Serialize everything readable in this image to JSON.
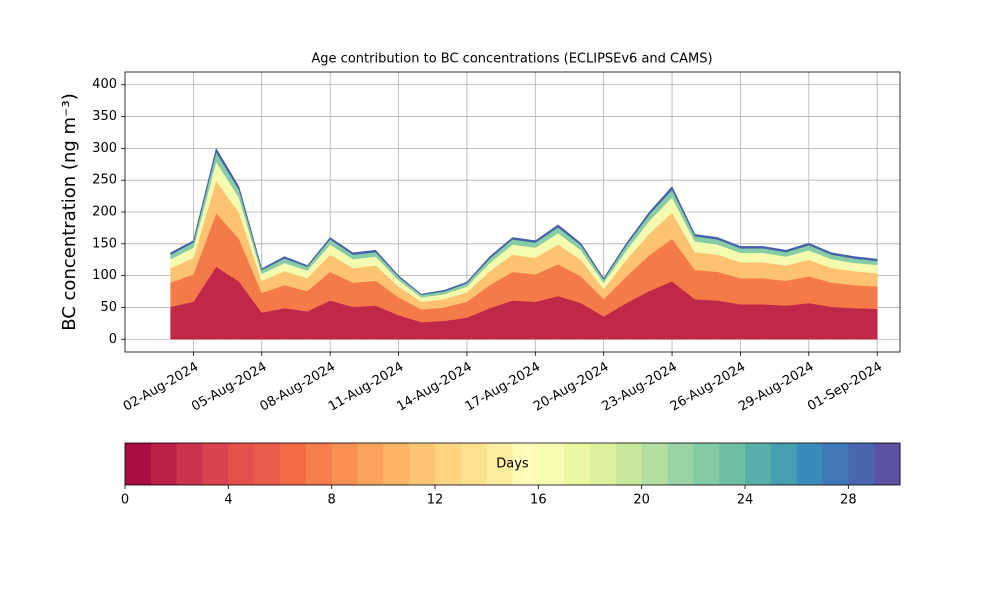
{
  "chart_data": {
    "type": "stacked_area",
    "title": "Age contribution to BC concentrations (ECLIPSEv6 and CAMS)",
    "y_label": "BC concentration (ng m⁻³)",
    "x": [
      "2024-08-01",
      "2024-08-02",
      "2024-08-03",
      "2024-08-04",
      "2024-08-05",
      "2024-08-06",
      "2024-08-07",
      "2024-08-08",
      "2024-08-09",
      "2024-08-10",
      "2024-08-11",
      "2024-08-12",
      "2024-08-13",
      "2024-08-14",
      "2024-08-15",
      "2024-08-16",
      "2024-08-17",
      "2024-08-18",
      "2024-08-19",
      "2024-08-20",
      "2024-08-21",
      "2024-08-22",
      "2024-08-23",
      "2024-08-24",
      "2024-08-25",
      "2024-08-26",
      "2024-08-27",
      "2024-08-28",
      "2024-08-29",
      "2024-08-30",
      "2024-08-31",
      "2024-09-01"
    ],
    "series": [
      {
        "color": "#c0284a",
        "values": [
          51,
          59,
          114,
          91,
          42,
          49,
          44,
          61,
          51,
          53,
          38,
          27,
          29,
          34,
          49,
          61,
          59,
          68,
          57,
          36,
          57,
          76,
          91,
          63,
          61,
          55,
          55,
          53,
          57,
          51,
          49,
          48
        ]
      },
      {
        "color": "#f47a48",
        "values": [
          38,
          43,
          84,
          67,
          31,
          36,
          32,
          45,
          38,
          39,
          28,
          20,
          21,
          25,
          36,
          45,
          43,
          50,
          42,
          27,
          42,
          56,
          67,
          46,
          45,
          41,
          41,
          39,
          42,
          38,
          36,
          35
        ]
      },
      {
        "color": "#fdc272",
        "values": [
          23,
          26,
          51,
          41,
          19,
          22,
          20,
          27,
          23,
          24,
          17,
          12,
          13,
          15,
          22,
          27,
          26,
          31,
          26,
          16,
          26,
          34,
          41,
          28,
          27,
          25,
          25,
          24,
          26,
          23,
          22,
          21
        ]
      },
      {
        "color": "#f4faae",
        "values": [
          14,
          16,
          30,
          24,
          11,
          13,
          12,
          16,
          14,
          14,
          10,
          7,
          8,
          9,
          13,
          16,
          16,
          18,
          15,
          10,
          15,
          20,
          24,
          17,
          16,
          15,
          15,
          14,
          15,
          14,
          13,
          13
        ]
      },
      {
        "color": "#86cca5",
        "values": [
          7,
          8,
          15,
          12,
          6,
          7,
          6,
          8,
          7,
          7,
          5,
          4,
          4,
          5,
          7,
          8,
          8,
          9,
          8,
          5,
          8,
          10,
          12,
          8,
          8,
          7,
          7,
          7,
          8,
          7,
          7,
          6
        ]
      },
      {
        "color": "#4560aa",
        "values": [
          3,
          3,
          6,
          5,
          2,
          3,
          2,
          3,
          3,
          3,
          2,
          1,
          2,
          2,
          3,
          3,
          3,
          4,
          3,
          2,
          3,
          4,
          5,
          3,
          3,
          3,
          3,
          3,
          3,
          3,
          3,
          3
        ]
      }
    ],
    "xlim": [
      "2024-07-30",
      "2024-09-02"
    ],
    "xticks": [
      {
        "value": "2024-08-02",
        "label": "02-Aug-2024"
      },
      {
        "value": "2024-08-05",
        "label": "05-Aug-2024"
      },
      {
        "value": "2024-08-08",
        "label": "08-Aug-2024"
      },
      {
        "value": "2024-08-11",
        "label": "11-Aug-2024"
      },
      {
        "value": "2024-08-14",
        "label": "14-Aug-2024"
      },
      {
        "value": "2024-08-17",
        "label": "17-Aug-2024"
      },
      {
        "value": "2024-08-20",
        "label": "20-Aug-2024"
      },
      {
        "value": "2024-08-23",
        "label": "23-Aug-2024"
      },
      {
        "value": "2024-08-26",
        "label": "26-Aug-2024"
      },
      {
        "value": "2024-08-29",
        "label": "29-Aug-2024"
      },
      {
        "value": "2024-09-01",
        "label": "01-Sep-2024"
      }
    ],
    "ylim": [
      -20,
      420
    ],
    "yticks": [
      0,
      50,
      100,
      150,
      200,
      250,
      300,
      350,
      400
    ],
    "grid": true,
    "colorbar": {
      "label": "Days",
      "lim": [
        0,
        30
      ],
      "ticks": [
        0,
        4,
        8,
        12,
        16,
        20,
        24,
        28
      ],
      "colors": [
        "#a90d44",
        "#bc2249",
        "#cb334c",
        "#d8434e",
        "#e2524b",
        "#e95c47",
        "#f16c43",
        "#f67f4b",
        "#f99153",
        "#fba35c",
        "#fdb466",
        "#fdc574",
        "#fed481",
        "#fee18e",
        "#feec9f",
        "#fffbb8",
        "#f7fcb3",
        "#ecf7a2",
        "#ddf09b",
        "#c9e89e",
        "#b3e0a2",
        "#9ad4a4",
        "#82cba5",
        "#6dc0a4",
        "#5aaea8",
        "#47a0b2",
        "#3a8abc",
        "#3d78b5",
        "#4a66ad",
        "#5b52a3"
      ]
    }
  }
}
